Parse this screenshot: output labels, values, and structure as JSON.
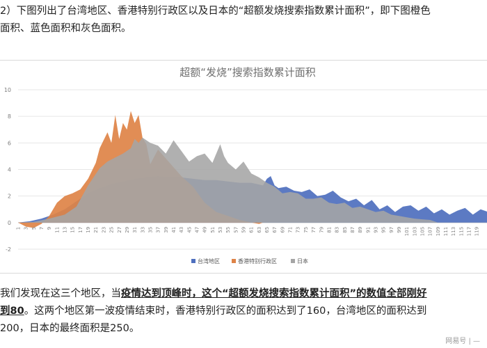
{
  "intro": {
    "line1": "2）下图列出了台湾地区、香港特别行政区以及日本的“超额发烧搜索指数累计面积”，即下图橙色",
    "line2": "面积、蓝色面积和灰色面积。"
  },
  "conclusion": {
    "l1_a": "我们发现在这三个地区，当",
    "l1_b": "疫情达到顶峰时，这个“超额发烧搜索指数累计面积”的数值全部刚好",
    "l2_a": "到80",
    "l2_b": "。这两个地区第一波疫情结束时，香港特别行政区的面积达到了160，台湾地区的面积达到",
    "l3": "200，日本的最终面积是250。"
  },
  "watermark": "网易号 | —",
  "colors": {
    "taiwan": "#4e6fbe",
    "hongkong": "#de8347",
    "japan": "#a5a5a5"
  },
  "chart_data": {
    "type": "area",
    "title": "超额“发烧”搜索指数累计面积",
    "ylim": [
      -2,
      10
    ],
    "yticks": [
      "-2",
      "0",
      "2",
      "4",
      "6",
      "8",
      "10"
    ],
    "x_ticks": [
      "1",
      "3",
      "5",
      "7",
      "9",
      "11",
      "13",
      "15",
      "17",
      "19",
      "21",
      "23",
      "25",
      "27",
      "29",
      "31",
      "33",
      "35",
      "37",
      "39",
      "41",
      "43",
      "45",
      "47",
      "49",
      "51",
      "53",
      "55",
      "57",
      "59",
      "61",
      "63",
      "65",
      "67",
      "69",
      "71",
      "73",
      "75",
      "77",
      "79",
      "81",
      "83",
      "85",
      "87",
      "89",
      "91",
      "93",
      "95",
      "97",
      "99",
      "101",
      "103",
      "105",
      "107",
      "109",
      "111",
      "113",
      "115",
      "117",
      "119"
    ],
    "grid": true,
    "legend_position": "bottom",
    "series": [
      {
        "name": "台湾地区",
        "key": "taiwan",
        "x": [
          1,
          4,
          7,
          10,
          13,
          16,
          19,
          22,
          25,
          28,
          31,
          34,
          37,
          40,
          43,
          46,
          49,
          52,
          55,
          58,
          61,
          64,
          65,
          66,
          67,
          68,
          70,
          72,
          74,
          76,
          78,
          80,
          82,
          84,
          86,
          88,
          90,
          92,
          94,
          96,
          98,
          100,
          102,
          104,
          106,
          108,
          110,
          112,
          114,
          116,
          118,
          120,
          122
        ],
        "y": [
          0,
          0.1,
          0.3,
          0.6,
          1.0,
          1.6,
          2.2,
          2.6,
          2.9,
          3.1,
          3.3,
          3.4,
          3.5,
          3.4,
          3.4,
          3.3,
          3.2,
          3.2,
          3.1,
          3.0,
          3.0,
          2.8,
          3.3,
          3.5,
          2.8,
          2.6,
          2.7,
          2.4,
          2.3,
          2.5,
          2.0,
          2.1,
          2.4,
          1.9,
          1.6,
          1.8,
          1.3,
          1.7,
          1.0,
          1.3,
          0.8,
          1.2,
          1.3,
          0.9,
          1.2,
          0.7,
          1.0,
          0.6,
          0.9,
          1.1,
          0.6,
          1.0,
          0.8
        ]
      },
      {
        "name": "香港特别行政区",
        "key": "hongkong",
        "x": [
          1,
          3,
          5,
          7,
          9,
          11,
          13,
          15,
          17,
          19,
          21,
          22,
          23,
          24,
          25,
          26,
          27,
          28,
          29,
          30,
          31,
          32,
          33,
          34,
          35,
          37,
          40,
          43,
          46,
          49,
          52,
          55,
          58,
          61,
          63,
          64
        ],
        "y": [
          0,
          -0.3,
          -0.4,
          -0.1,
          0.5,
          1.5,
          2.0,
          2.2,
          2.5,
          3.3,
          4.5,
          5.6,
          6.2,
          6.8,
          6.0,
          8.1,
          6.3,
          7.5,
          7.0,
          8.4,
          7.5,
          8.1,
          6.4,
          5.9,
          4.4,
          5.5,
          4.5,
          3.5,
          2.7,
          1.5,
          0.8,
          0.5,
          0.2,
          0,
          -0.1,
          0
        ]
      },
      {
        "name": "日本",
        "key": "japan",
        "x": [
          1,
          5,
          9,
          13,
          16,
          19,
          22,
          24,
          26,
          28,
          30,
          31,
          32,
          33,
          35,
          37,
          39,
          41,
          43,
          45,
          47,
          49,
          51,
          53,
          54,
          55,
          57,
          59,
          61,
          63,
          65,
          67,
          69,
          71,
          73,
          75,
          77,
          79,
          81,
          83,
          85,
          87,
          89,
          91,
          93,
          95,
          97,
          99,
          101,
          103,
          105,
          107,
          108,
          109
        ],
        "y": [
          0,
          0.05,
          0.3,
          0.6,
          1.2,
          2.8,
          4.1,
          4.6,
          4.9,
          5.2,
          5.6,
          6.3,
          6.0,
          6.4,
          6.0,
          5.8,
          5.2,
          6.2,
          5.4,
          4.6,
          5.0,
          5.2,
          4.5,
          5.9,
          5.0,
          4.5,
          4.0,
          4.6,
          3.7,
          3.4,
          3.0,
          2.7,
          2.2,
          2.3,
          2.2,
          1.8,
          1.8,
          1.9,
          1.5,
          1.4,
          1.5,
          1.1,
          1.2,
          1.0,
          0.8,
          0.9,
          0.6,
          0.5,
          0.4,
          0.3,
          0.25,
          0.2,
          0.1,
          0
        ]
      }
    ]
  }
}
